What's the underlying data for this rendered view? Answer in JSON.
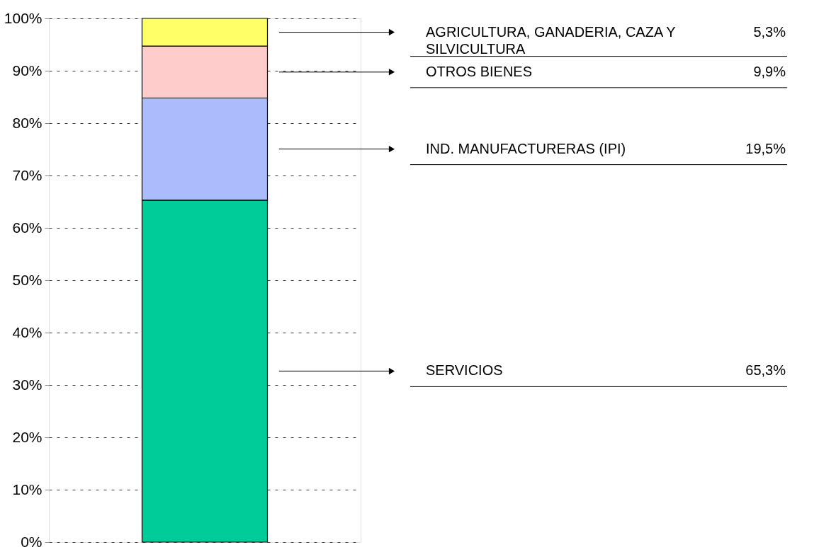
{
  "chart_data": {
    "type": "bar",
    "stacked": true,
    "categories": [
      null
    ],
    "series": [
      {
        "name": "SERVICIOS",
        "color": "#00cc99",
        "values": [
          65.3
        ]
      },
      {
        "name": "IND. MANUFACTURERAS (IPI)",
        "color": "#aabcfc",
        "values": [
          19.5
        ]
      },
      {
        "name": "OTROS BIENES",
        "color": "#ffcccc",
        "values": [
          9.9
        ]
      },
      {
        "name": "AGRICULTURA, GANADERIA, CAZA Y SILVICULTURA",
        "color": "#ffff66",
        "values": [
          5.3
        ]
      }
    ],
    "annotations": [
      "65,3%",
      "19,5%",
      "9,9%",
      "5,3%"
    ],
    "ylim": [
      0,
      100
    ],
    "yticks": [
      {
        "value": 0,
        "label": "0%"
      },
      {
        "value": 10,
        "label": "10%"
      },
      {
        "value": 20,
        "label": "20%"
      },
      {
        "value": 30,
        "label": "30%"
      },
      {
        "value": 40,
        "label": "40%"
      },
      {
        "value": 50,
        "label": "50%"
      },
      {
        "value": 60,
        "label": "60%"
      },
      {
        "value": 70,
        "label": "70%"
      },
      {
        "value": 80,
        "label": "80%"
      },
      {
        "value": 90,
        "label": "90%"
      },
      {
        "value": 100,
        "label": "100%"
      }
    ],
    "grid": "y",
    "legend": false
  }
}
